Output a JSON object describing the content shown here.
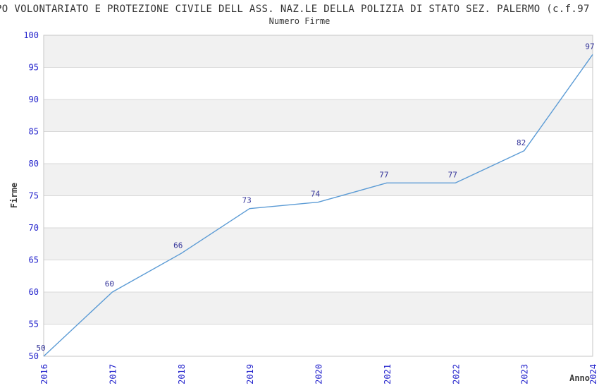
{
  "header": {
    "title": "PO VOLONTARIATO E PROTEZIONE CIVILE DELL ASS. NAZ.LE DELLA POLIZIA DI STATO SEZ. PALERMO (c.f.97",
    "subtitle": "Numero Firme"
  },
  "chart_data": {
    "type": "line",
    "title": "Numero Firme",
    "categories": [
      "2016",
      "2017",
      "2018",
      "2019",
      "2020",
      "2021",
      "2022",
      "2023",
      "2024"
    ],
    "values": [
      50,
      60,
      66,
      73,
      74,
      77,
      77,
      82,
      97
    ],
    "point_labels": [
      "50",
      "60",
      "66",
      "73",
      "74",
      "77",
      "77",
      "82",
      "97"
    ],
    "xlabel": "Anno",
    "ylabel": "Firme",
    "ylim": [
      50,
      100
    ],
    "yticks": [
      50,
      55,
      60,
      65,
      70,
      75,
      80,
      85,
      90,
      95,
      100
    ],
    "grid": "horizontal-bands-alternating",
    "legend_position": "none",
    "colors": {
      "line": "#5b9bd5",
      "point_label": "#333399",
      "tick_label": "#2424cc",
      "band_fill": "#f1f1f1",
      "gridline": "#d8d8d8",
      "plot_border": "#c6c6c6",
      "title_text": "#333333",
      "axis_title_text": "#3a3a3a",
      "background": "#ffffff"
    }
  }
}
